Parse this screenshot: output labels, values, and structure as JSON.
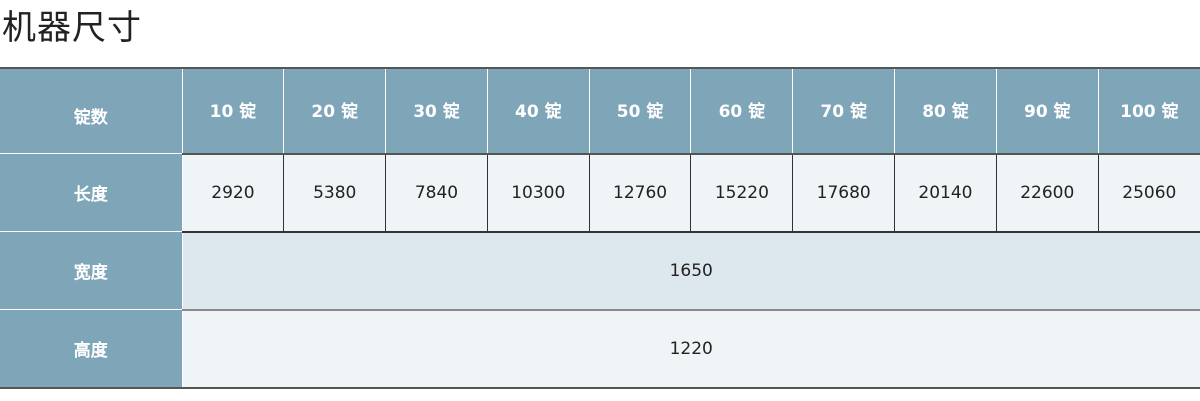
{
  "title": "机器尺寸",
  "table": {
    "spindles_label": "锭数",
    "spindles": [
      "10 锭",
      "20 锭",
      "30 锭",
      "40 锭",
      "50 锭",
      "60 锭",
      "70 锭",
      "80 锭",
      "90 锭",
      "100 锭"
    ],
    "length_label": "长度",
    "lengths": [
      "2920",
      "5380",
      "7840",
      "10300",
      "12760",
      "15220",
      "17680",
      "20140",
      "22600",
      "25060"
    ],
    "width_label": "宽度",
    "width": "1650",
    "height_label": "高度",
    "height": "1220"
  },
  "colors": {
    "header_bg": "#7fa5b8",
    "cell_bg": "#eff4f7",
    "width_row_bg": "#dde7ee"
  }
}
